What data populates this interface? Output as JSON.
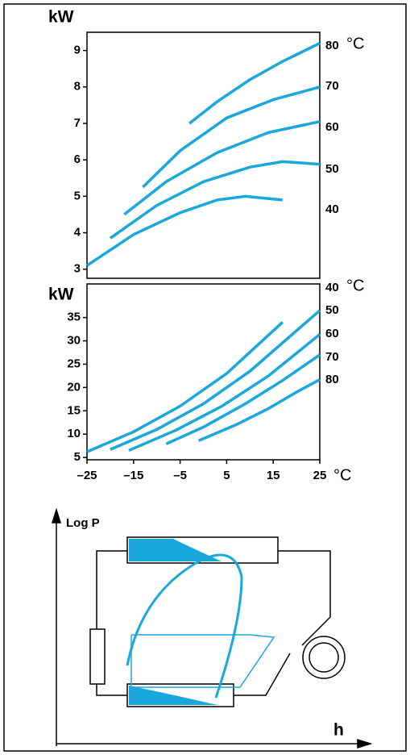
{
  "chart_data": [
    {
      "type": "line",
      "y_label": "kW",
      "unit": "°C",
      "xlim": [
        -25,
        25
      ],
      "ylim": [
        2.75,
        9.5
      ],
      "yticks": [
        3,
        4,
        5,
        6,
        7,
        8,
        9
      ],
      "series": [
        {
          "name": "80",
          "color": "#1aa7dc",
          "x": [
            -3,
            3,
            10,
            17,
            25
          ],
          "values": [
            7.0,
            7.6,
            8.2,
            8.7,
            9.2
          ]
        },
        {
          "name": "70",
          "color": "#1aa7dc",
          "x": [
            -13,
            -5,
            5,
            15,
            25
          ],
          "values": [
            5.25,
            6.25,
            7.15,
            7.65,
            8.0
          ]
        },
        {
          "name": "60",
          "color": "#1aa7dc",
          "x": [
            -17,
            -8,
            3,
            14,
            25
          ],
          "values": [
            4.5,
            5.4,
            6.2,
            6.75,
            7.05
          ]
        },
        {
          "name": "50",
          "color": "#1aa7dc",
          "x": [
            -20,
            -10,
            0,
            10,
            17,
            25
          ],
          "values": [
            3.85,
            4.75,
            5.4,
            5.8,
            5.95,
            5.88
          ]
        },
        {
          "name": "40",
          "color": "#1aa7dc",
          "x": [
            -25,
            -15,
            -5,
            3,
            9,
            17
          ],
          "values": [
            3.1,
            3.95,
            4.55,
            4.9,
            5.0,
            4.9
          ]
        }
      ]
    },
    {
      "type": "line",
      "y_label": "kW",
      "unit": "°C",
      "x_unit": "°C",
      "xlim": [
        -25,
        25
      ],
      "ylim": [
        4.5,
        42.2
      ],
      "xticks": [
        {
          "value": -25,
          "label": "–25"
        },
        {
          "value": -15,
          "label": "–15"
        },
        {
          "value": -5,
          "label": "–5"
        },
        5,
        15,
        25
      ],
      "yticks": [
        5,
        10,
        15,
        20,
        25,
        30,
        35
      ],
      "series": [
        {
          "name": "40",
          "color": "#1aa7dc",
          "x": [
            -25,
            -15,
            -5,
            5,
            17
          ],
          "values": [
            6.2,
            10.5,
            16,
            23,
            34
          ]
        },
        {
          "name": "50",
          "color": "#1aa7dc",
          "x": [
            -20,
            -10,
            0,
            10,
            25
          ],
          "values": [
            6.7,
            11,
            16.5,
            23.5,
            36.5
          ]
        },
        {
          "name": "60",
          "color": "#1aa7dc",
          "x": [
            -16,
            -6,
            4,
            14,
            25
          ],
          "values": [
            6.5,
            10.8,
            16,
            22.5,
            31.4
          ]
        },
        {
          "name": "70",
          "color": "#1aa7dc",
          "x": [
            -8,
            0,
            9,
            17,
            25
          ],
          "values": [
            7.9,
            11.5,
            16.5,
            21.5,
            27
          ]
        },
        {
          "name": "80",
          "color": "#1aa7dc",
          "x": [
            -1,
            7,
            14,
            20,
            25
          ],
          "values": [
            8.6,
            12,
            15.5,
            19,
            21.7
          ]
        }
      ]
    }
  ],
  "diagram": {
    "y_label": "Log P",
    "x_label": "h"
  }
}
